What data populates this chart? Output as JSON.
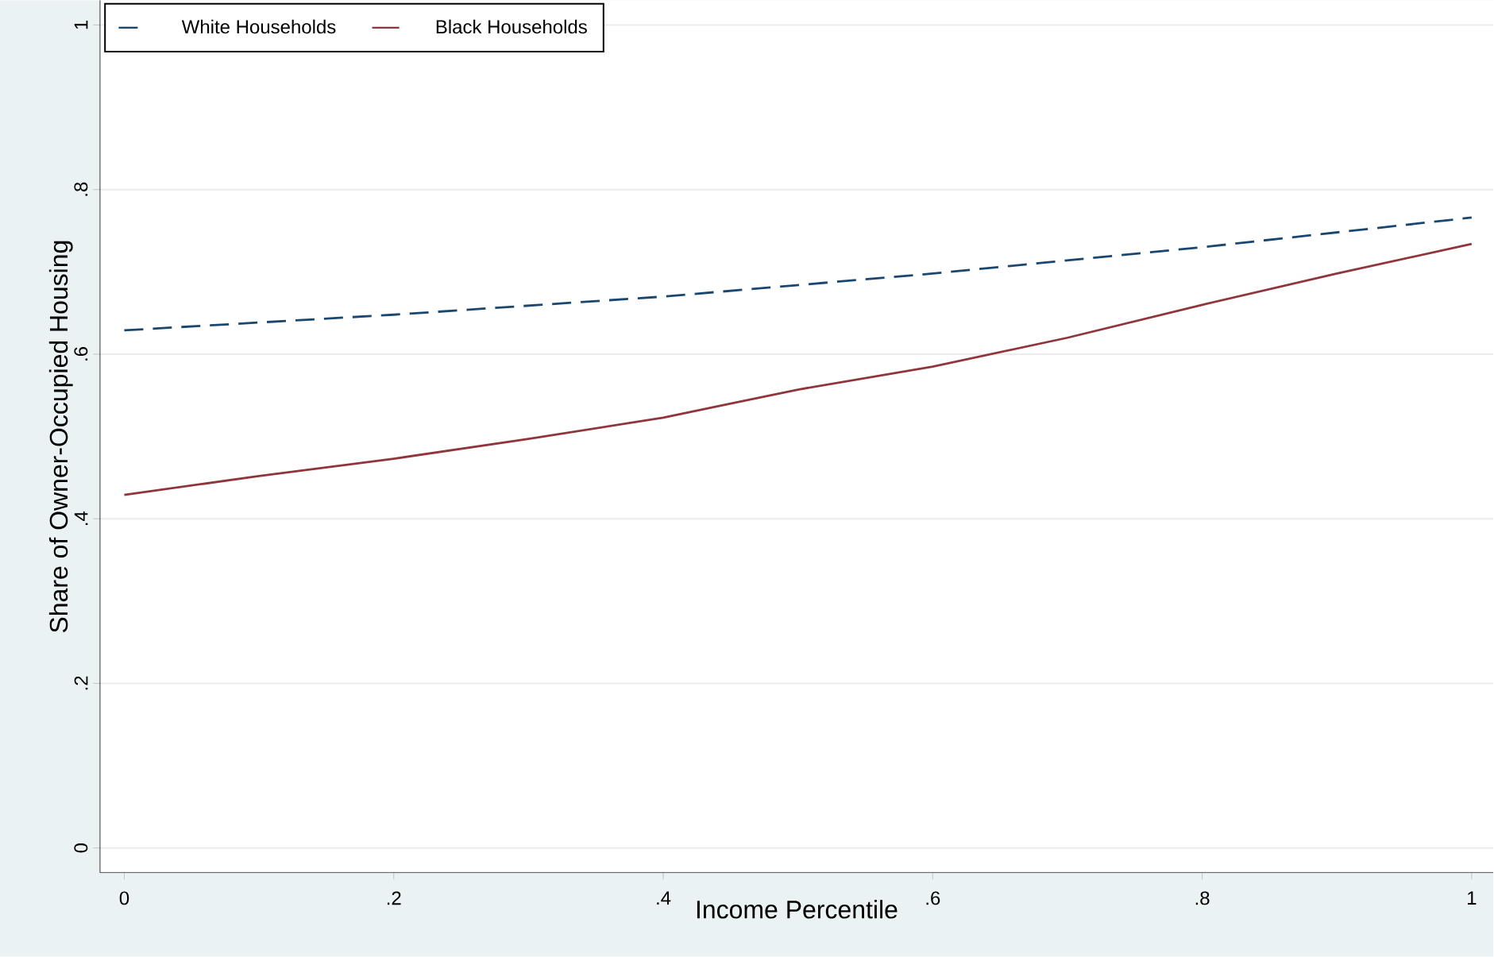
{
  "chart_data": {
    "type": "line",
    "xlabel": "Income Percentile",
    "ylabel": "Share of Owner-Occupied Housing",
    "xlim": [
      -0.018,
      1.016
    ],
    "ylim": [
      -0.03,
      1.03
    ],
    "xticks": [
      0,
      {
        "value": 0.2,
        "label": ".2"
      },
      {
        "value": 0.4,
        "label": ".4"
      },
      {
        "value": 0.6,
        "label": ".6"
      },
      {
        "value": 0.8,
        "label": ".8"
      },
      1
    ],
    "yticks": [
      0,
      {
        "value": 0.2,
        "label": ".2"
      },
      {
        "value": 0.4,
        "label": ".4"
      },
      {
        "value": 0.6,
        "label": ".6"
      },
      {
        "value": 0.8,
        "label": ".8"
      },
      1
    ],
    "grid": "y",
    "legend": "top left",
    "marker": "none",
    "series": [
      {
        "name": "White Households",
        "color": "#1a476f",
        "line_style": "dashed",
        "x": [
          0,
          0.2,
          0.4,
          0.6,
          0.8,
          1
        ],
        "values": [
          0.629,
          0.648,
          0.67,
          0.698,
          0.73,
          0.766
        ]
      },
      {
        "name": "Black Households",
        "color": "#90353b",
        "line_style": "solid",
        "x": [
          0,
          0.1,
          0.2,
          0.3,
          0.4,
          0.5,
          0.6,
          0.7,
          0.8,
          0.9,
          1
        ],
        "values": [
          0.429,
          0.452,
          0.473,
          0.497,
          0.523,
          0.557,
          0.585,
          0.62,
          0.66,
          0.698,
          0.734
        ]
      }
    ]
  }
}
